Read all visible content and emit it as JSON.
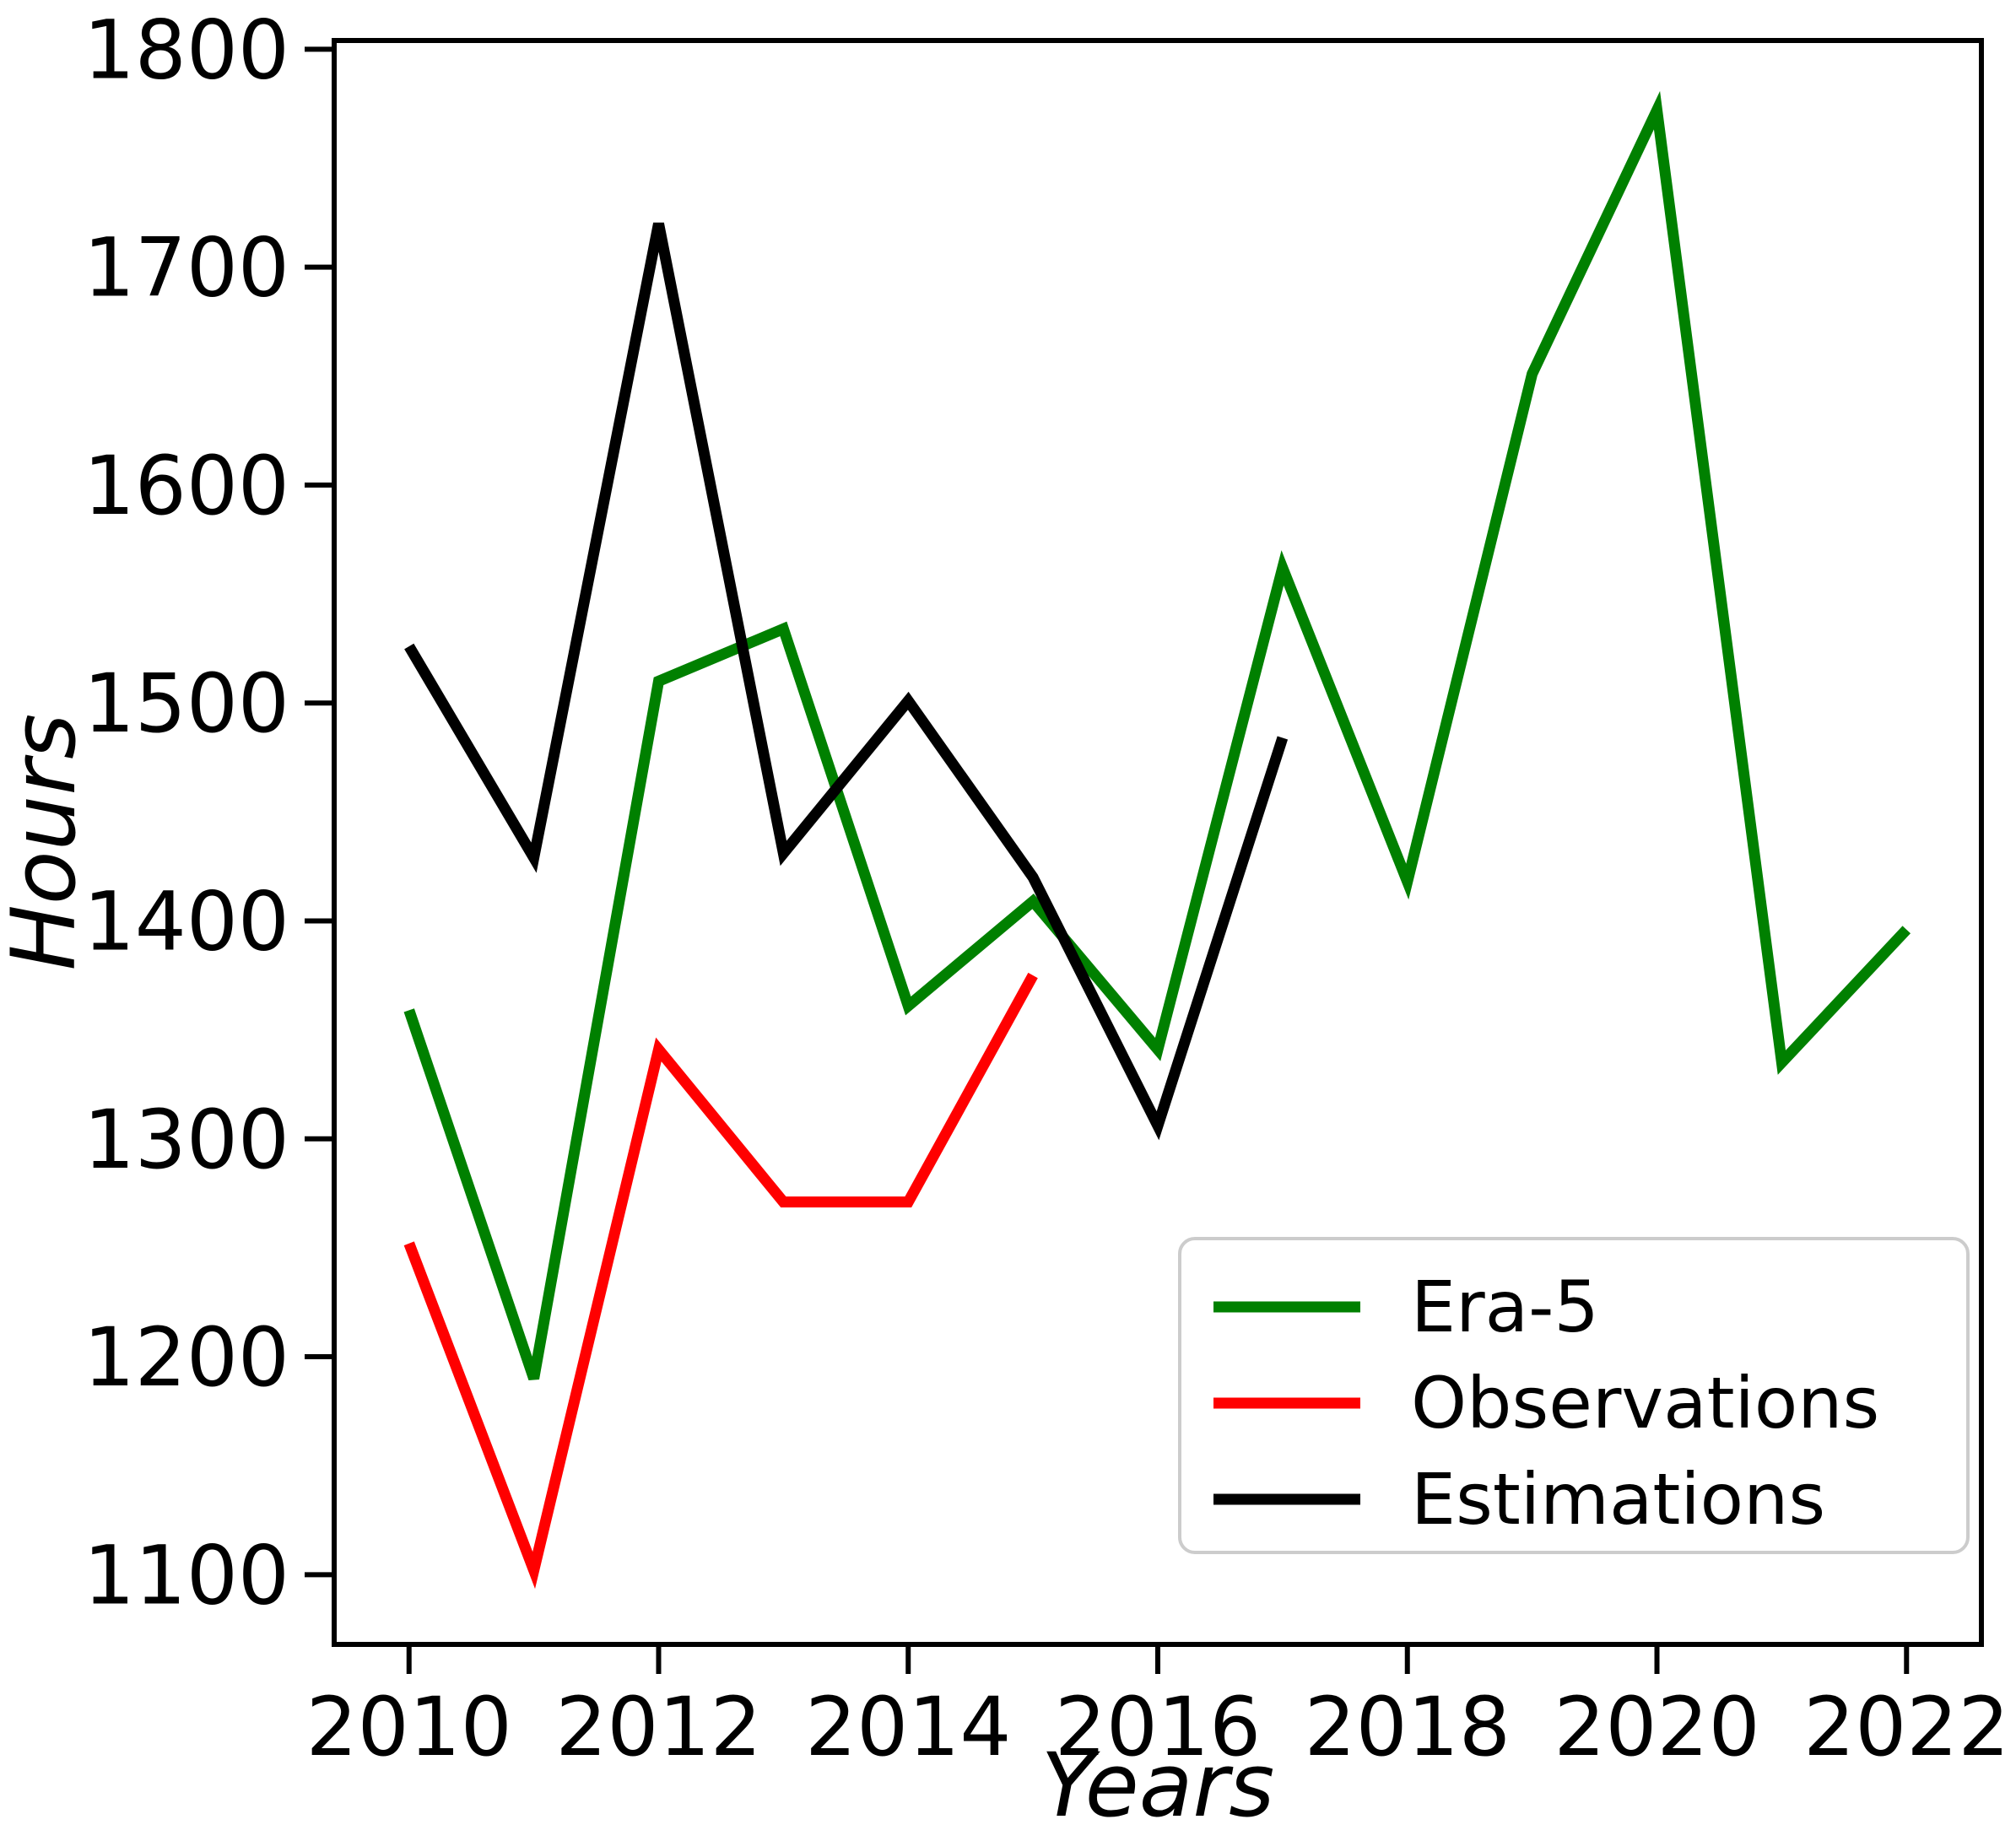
{
  "figure": {
    "background": "#ffffff",
    "spine_color": "#000000",
    "legend_border_color": "#cccccc"
  },
  "chart_data": {
    "type": "line",
    "title": "",
    "xlabel": "Years",
    "ylabel": "Hours",
    "xlim": [
      2009.4,
      2022.6
    ],
    "ylim": [
      1068,
      1804
    ],
    "x_ticks": [
      2010,
      2012,
      2014,
      2016,
      2018,
      2020,
      2022
    ],
    "y_ticks": [
      1100,
      1200,
      1300,
      1400,
      1500,
      1600,
      1700,
      1800
    ],
    "grid": false,
    "legend": {
      "position": "lower right",
      "entries": [
        "Era-5",
        "Observations",
        "Estimations"
      ]
    },
    "series": [
      {
        "name": "Era-5",
        "color": "#008000",
        "x": [
          2010,
          2011,
          2012,
          2013,
          2014,
          2015,
          2016,
          2017,
          2018,
          2019,
          2020,
          2021,
          2022
        ],
        "values": [
          1359,
          1190,
          1510,
          1534,
          1361,
          1409,
          1341,
          1562,
          1418,
          1651,
          1772,
          1335,
          1396
        ]
      },
      {
        "name": "Observations",
        "color": "#ff0000",
        "x": [
          2010,
          2011,
          2012,
          2013,
          2014,
          2015
        ],
        "values": [
          1252,
          1102,
          1341,
          1271,
          1271,
          1375
        ]
      },
      {
        "name": "Estimations",
        "color": "#000000",
        "x": [
          2010,
          2011,
          2012,
          2013,
          2014,
          2015,
          2016,
          2017
        ],
        "values": [
          1526,
          1429,
          1720,
          1431,
          1501,
          1420,
          1306,
          1484
        ]
      }
    ]
  }
}
